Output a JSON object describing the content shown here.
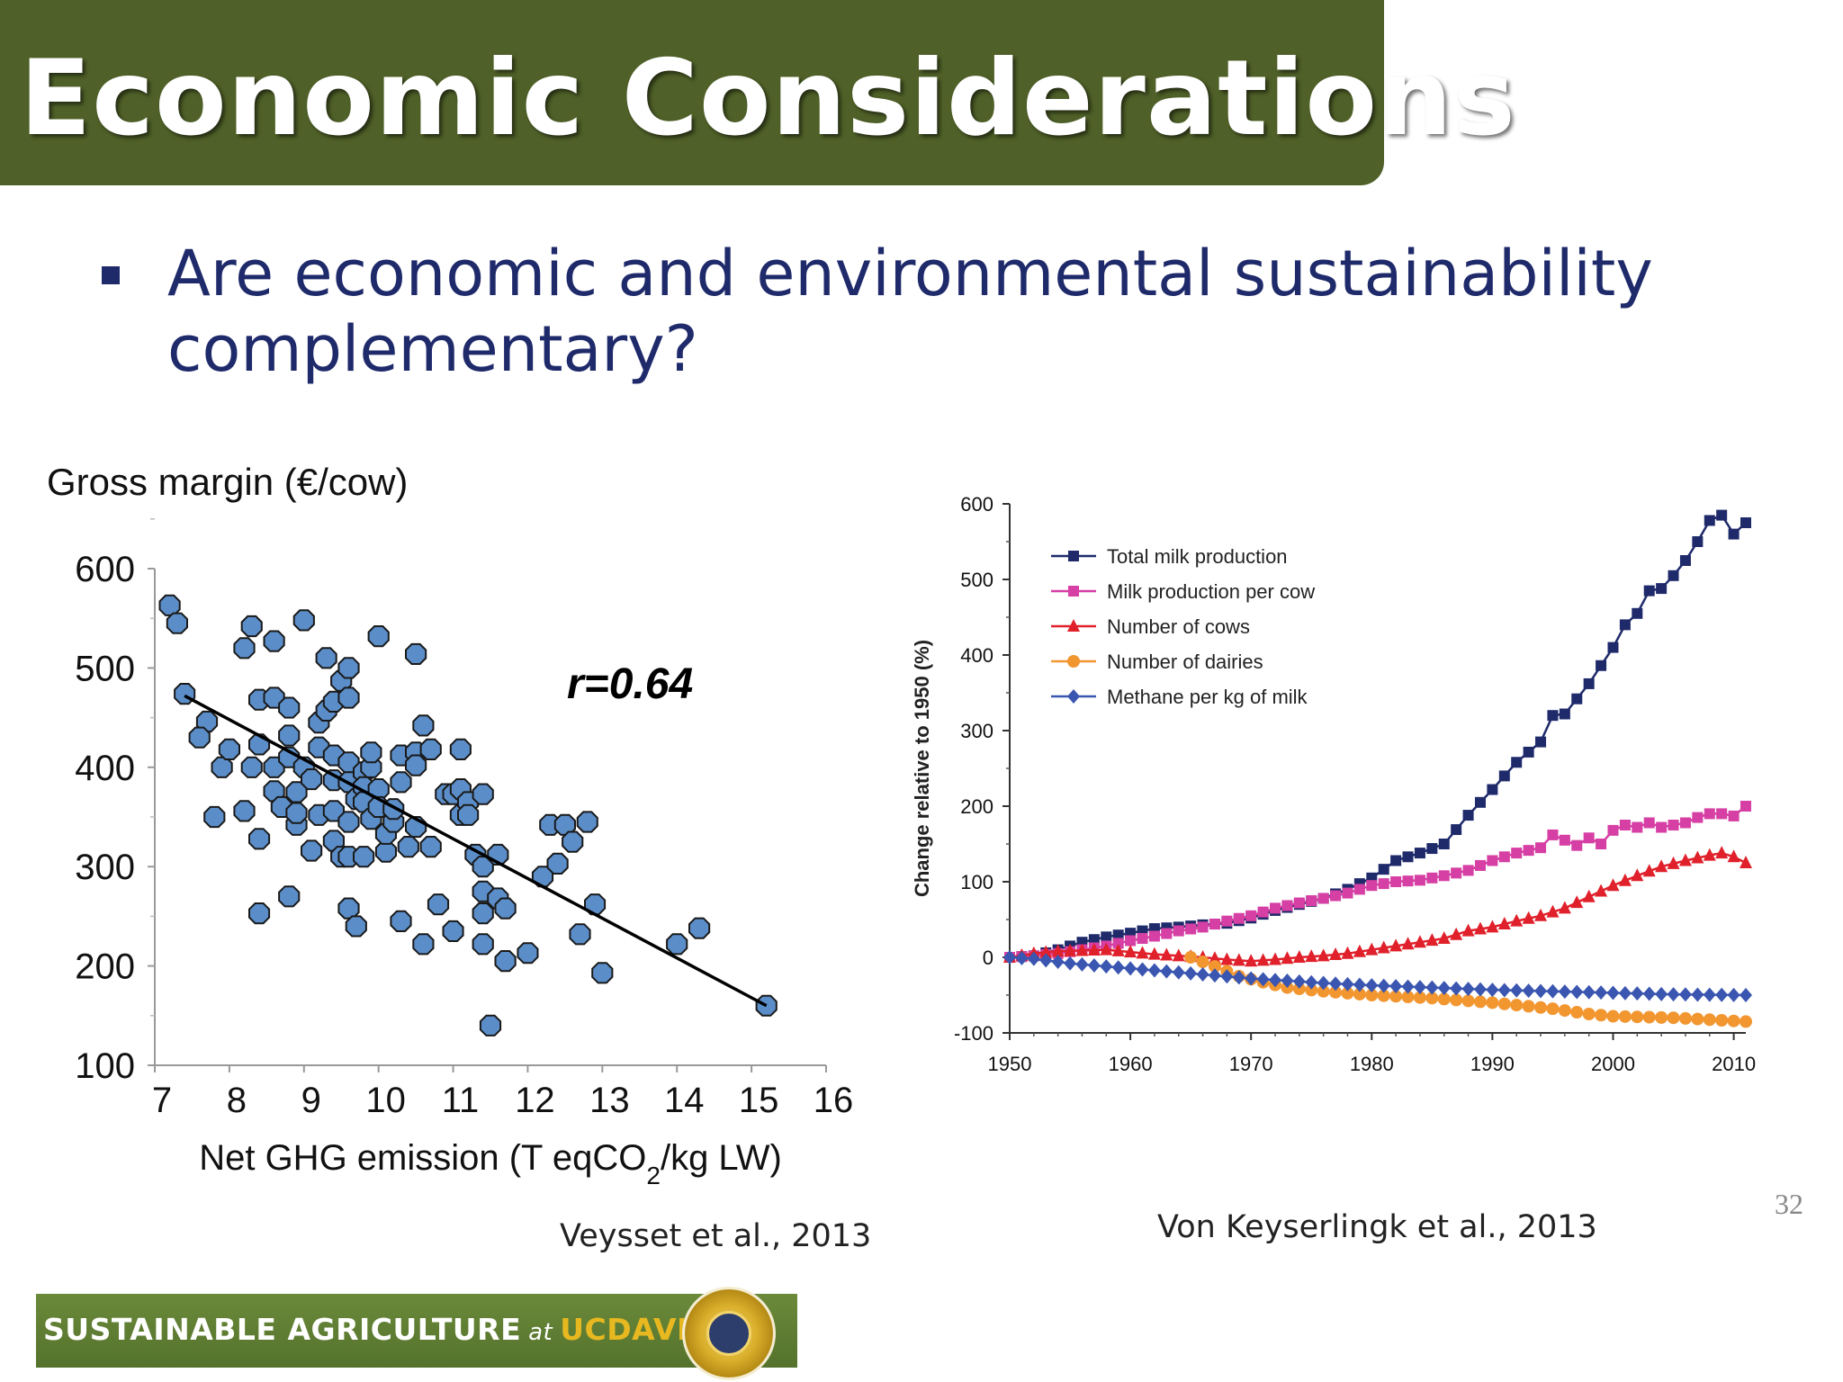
{
  "slide": {
    "title": "Economic Considerations",
    "bullet_line1": "Are economic and environmental sustainability",
    "bullet_line2": "complementary?",
    "page_number": "32",
    "footer": {
      "brand_main": "SUSTAINABLE  AGRICULTURE",
      "brand_at": "at",
      "brand_uc": "UCDAVIS"
    },
    "colors": {
      "title_bar": "#4f6128",
      "bullet_text": "#1f2a6b"
    }
  },
  "chart_data": [
    {
      "type": "scatter",
      "title": "",
      "ylabel": "Gross margin (€/cow)",
      "xlabel_pre": "Net GHG emission (T eqCO",
      "xlabel_sub": "2",
      "xlabel_post": "/kg LW)",
      "xlim": [
        7,
        16
      ],
      "ylim": [
        100,
        600
      ],
      "xticks": [
        "7",
        "8",
        "9",
        "10",
        "11",
        "12",
        "13",
        "14",
        "15",
        "16"
      ],
      "yticks": [
        "100",
        "200",
        "300",
        "400",
        "500",
        "600"
      ],
      "annotation": "r=0.64",
      "trendline": [
        [
          7.4,
          472
        ],
        [
          15.2,
          160
        ]
      ],
      "marker_color": "#5b8ec9",
      "citation": "Veysset et al., 2013",
      "points": [
        [
          7.2,
          563
        ],
        [
          7.3,
          545
        ],
        [
          7.4,
          474
        ],
        [
          7.7,
          446
        ],
        [
          7.6,
          430
        ],
        [
          7.8,
          350
        ],
        [
          7.9,
          400
        ],
        [
          8.0,
          418
        ],
        [
          8.2,
          520
        ],
        [
          8.3,
          542
        ],
        [
          8.2,
          356
        ],
        [
          8.3,
          400
        ],
        [
          8.4,
          423
        ],
        [
          8.4,
          468
        ],
        [
          8.4,
          328
        ],
        [
          8.4,
          253
        ],
        [
          8.6,
          470
        ],
        [
          8.6,
          527
        ],
        [
          8.6,
          400
        ],
        [
          8.6,
          376
        ],
        [
          8.7,
          360
        ],
        [
          8.8,
          432
        ],
        [
          8.8,
          410
        ],
        [
          8.8,
          460
        ],
        [
          8.9,
          342
        ],
        [
          8.9,
          354
        ],
        [
          8.9,
          375
        ],
        [
          8.8,
          270
        ],
        [
          9.0,
          400
        ],
        [
          9.0,
          548
        ],
        [
          9.1,
          388
        ],
        [
          9.1,
          316
        ],
        [
          9.2,
          352
        ],
        [
          9.2,
          445
        ],
        [
          9.2,
          420
        ],
        [
          9.3,
          457
        ],
        [
          9.3,
          510
        ],
        [
          9.4,
          466
        ],
        [
          9.4,
          412
        ],
        [
          9.4,
          387
        ],
        [
          9.4,
          356
        ],
        [
          9.4,
          326
        ],
        [
          9.5,
          310
        ],
        [
          9.5,
          487
        ],
        [
          9.6,
          470
        ],
        [
          9.6,
          500
        ],
        [
          9.6,
          405
        ],
        [
          9.6,
          385
        ],
        [
          9.6,
          345
        ],
        [
          9.6,
          310
        ],
        [
          9.6,
          258
        ],
        [
          9.7,
          368
        ],
        [
          9.7,
          240
        ],
        [
          9.8,
          395
        ],
        [
          9.8,
          380
        ],
        [
          9.8,
          365
        ],
        [
          9.8,
          310
        ],
        [
          9.9,
          348
        ],
        [
          9.9,
          400
        ],
        [
          9.9,
          415
        ],
        [
          10.0,
          532
        ],
        [
          10.0,
          378
        ],
        [
          10.0,
          360
        ],
        [
          10.1,
          315
        ],
        [
          10.1,
          333
        ],
        [
          10.2,
          345
        ],
        [
          10.2,
          358
        ],
        [
          10.3,
          412
        ],
        [
          10.3,
          385
        ],
        [
          10.3,
          245
        ],
        [
          10.4,
          320
        ],
        [
          10.5,
          340
        ],
        [
          10.5,
          415
        ],
        [
          10.5,
          402
        ],
        [
          10.5,
          514
        ],
        [
          10.6,
          222
        ],
        [
          10.6,
          442
        ],
        [
          10.7,
          418
        ],
        [
          10.7,
          320
        ],
        [
          10.8,
          262
        ],
        [
          10.9,
          373
        ],
        [
          11.0,
          373
        ],
        [
          11.0,
          235
        ],
        [
          11.1,
          352
        ],
        [
          11.1,
          378
        ],
        [
          11.1,
          418
        ],
        [
          11.2,
          365
        ],
        [
          11.2,
          352
        ],
        [
          11.3,
          312
        ],
        [
          11.4,
          222
        ],
        [
          11.4,
          253
        ],
        [
          11.4,
          300
        ],
        [
          11.4,
          275
        ],
        [
          11.4,
          373
        ],
        [
          11.5,
          140
        ],
        [
          11.6,
          268
        ],
        [
          11.6,
          312
        ],
        [
          11.7,
          258
        ],
        [
          11.7,
          205
        ],
        [
          12.0,
          213
        ],
        [
          12.2,
          290
        ],
        [
          12.3,
          342
        ],
        [
          12.4,
          303
        ],
        [
          12.5,
          342
        ],
        [
          12.6,
          325
        ],
        [
          12.7,
          232
        ],
        [
          12.8,
          345
        ],
        [
          12.9,
          262
        ],
        [
          13.0,
          193
        ],
        [
          14.0,
          222
        ],
        [
          14.3,
          238
        ],
        [
          15.2,
          160
        ]
      ]
    },
    {
      "type": "line",
      "title": "",
      "ylabel": "Change relative to 1950 (%)",
      "xlabel": "",
      "xlim": [
        1950,
        2011
      ],
      "ylim": [
        -100,
        600
      ],
      "xticks": [
        "1950",
        "1960",
        "1970",
        "1980",
        "1990",
        "2000",
        "2010"
      ],
      "yticks": [
        "-100",
        "0",
        "100",
        "200",
        "300",
        "400",
        "500",
        "600"
      ],
      "legend_position": "top-left",
      "citation": "Von Keyserlingk et al., 2013",
      "series": [
        {
          "name": "Total milk production",
          "color": "#1f2a6b",
          "marker": "square",
          "points": [
            [
              1950,
              0
            ],
            [
              1952,
              2
            ],
            [
              1954,
              10
            ],
            [
              1956,
              20
            ],
            [
              1958,
              27
            ],
            [
              1960,
              32
            ],
            [
              1962,
              38
            ],
            [
              1964,
              40
            ],
            [
              1966,
              43
            ],
            [
              1968,
              45
            ],
            [
              1970,
              52
            ],
            [
              1972,
              62
            ],
            [
              1974,
              70
            ],
            [
              1976,
              78
            ],
            [
              1978,
              90
            ],
            [
              1980,
              105
            ],
            [
              1982,
              128
            ],
            [
              1984,
              138
            ],
            [
              1986,
              150
            ],
            [
              1988,
              188
            ],
            [
              1990,
              222
            ],
            [
              1992,
              258
            ],
            [
              1994,
              285
            ],
            [
              1995,
              320
            ],
            [
              1996,
              322
            ],
            [
              1998,
              362
            ],
            [
              2000,
              410
            ],
            [
              2001,
              440
            ],
            [
              2002,
              455
            ],
            [
              2003,
              485
            ],
            [
              2004,
              488
            ],
            [
              2005,
              505
            ],
            [
              2006,
              525
            ],
            [
              2007,
              550
            ],
            [
              2008,
              578
            ],
            [
              2009,
              585
            ],
            [
              2010,
              560
            ],
            [
              2011,
              575
            ]
          ]
        },
        {
          "name": "Milk production per cow",
          "color": "#d63fa4",
          "marker": "square",
          "points": [
            [
              1950,
              0
            ],
            [
              1952,
              2
            ],
            [
              1954,
              5
            ],
            [
              1956,
              10
            ],
            [
              1958,
              15
            ],
            [
              1960,
              22
            ],
            [
              1962,
              28
            ],
            [
              1964,
              35
            ],
            [
              1966,
              40
            ],
            [
              1968,
              48
            ],
            [
              1970,
              55
            ],
            [
              1972,
              65
            ],
            [
              1974,
              72
            ],
            [
              1976,
              78
            ],
            [
              1978,
              85
            ],
            [
              1980,
              95
            ],
            [
              1982,
              100
            ],
            [
              1984,
              102
            ],
            [
              1986,
              108
            ],
            [
              1988,
              115
            ],
            [
              1990,
              128
            ],
            [
              1992,
              138
            ],
            [
              1994,
              145
            ],
            [
              1995,
              162
            ],
            [
              1996,
              155
            ],
            [
              1997,
              148
            ],
            [
              1998,
              158
            ],
            [
              1999,
              150
            ],
            [
              2000,
              168
            ],
            [
              2001,
              175
            ],
            [
              2002,
              172
            ],
            [
              2003,
              178
            ],
            [
              2004,
              172
            ],
            [
              2005,
              175
            ],
            [
              2006,
              178
            ],
            [
              2007,
              185
            ],
            [
              2008,
              190
            ],
            [
              2009,
              190
            ],
            [
              2010,
              187
            ],
            [
              2011,
              200
            ]
          ]
        },
        {
          "name": "Number of cows",
          "color": "#e0202a",
          "marker": "triangle",
          "points": [
            [
              1950,
              0
            ],
            [
              1952,
              5
            ],
            [
              1954,
              8
            ],
            [
              1956,
              9
            ],
            [
              1958,
              10
            ],
            [
              1960,
              7
            ],
            [
              1962,
              4
            ],
            [
              1964,
              2
            ],
            [
              1966,
              0
            ],
            [
              1968,
              -3
            ],
            [
              1970,
              -5
            ],
            [
              1972,
              -3
            ],
            [
              1974,
              0
            ],
            [
              1976,
              2
            ],
            [
              1978,
              5
            ],
            [
              1980,
              10
            ],
            [
              1982,
              15
            ],
            [
              1984,
              20
            ],
            [
              1986,
              25
            ],
            [
              1988,
              35
            ],
            [
              1990,
              40
            ],
            [
              1992,
              48
            ],
            [
              1994,
              55
            ],
            [
              1996,
              65
            ],
            [
              1998,
              80
            ],
            [
              2000,
              95
            ],
            [
              2002,
              108
            ],
            [
              2004,
              120
            ],
            [
              2006,
              128
            ],
            [
              2008,
              135
            ],
            [
              2009,
              138
            ],
            [
              2010,
              133
            ],
            [
              2011,
              125
            ]
          ]
        },
        {
          "name": "Number of dairies",
          "color": "#f29630",
          "marker": "circle",
          "points": [
            [
              1965,
              0
            ],
            [
              1967,
              -12
            ],
            [
              1969,
              -25
            ],
            [
              1971,
              -33
            ],
            [
              1973,
              -40
            ],
            [
              1976,
              -45
            ],
            [
              1980,
              -50
            ],
            [
              1985,
              -54
            ],
            [
              1990,
              -60
            ],
            [
              1995,
              -68
            ],
            [
              1998,
              -75
            ],
            [
              2000,
              -78
            ],
            [
              2005,
              -80
            ],
            [
              2011,
              -85
            ]
          ]
        },
        {
          "name": "Methane per kg of milk",
          "color": "#3a56b0",
          "marker": "diamond",
          "points": [
            [
              1950,
              0
            ],
            [
              1952,
              -2
            ],
            [
              1955,
              -8
            ],
            [
              1958,
              -12
            ],
            [
              1961,
              -16
            ],
            [
              1964,
              -20
            ],
            [
              1967,
              -24
            ],
            [
              1970,
              -28
            ],
            [
              1973,
              -31
            ],
            [
              1976,
              -34
            ],
            [
              1980,
              -37
            ],
            [
              1985,
              -40
            ],
            [
              1990,
              -43
            ],
            [
              1995,
              -45
            ],
            [
              2000,
              -47
            ],
            [
              2005,
              -49
            ],
            [
              2011,
              -50
            ]
          ]
        }
      ]
    }
  ]
}
